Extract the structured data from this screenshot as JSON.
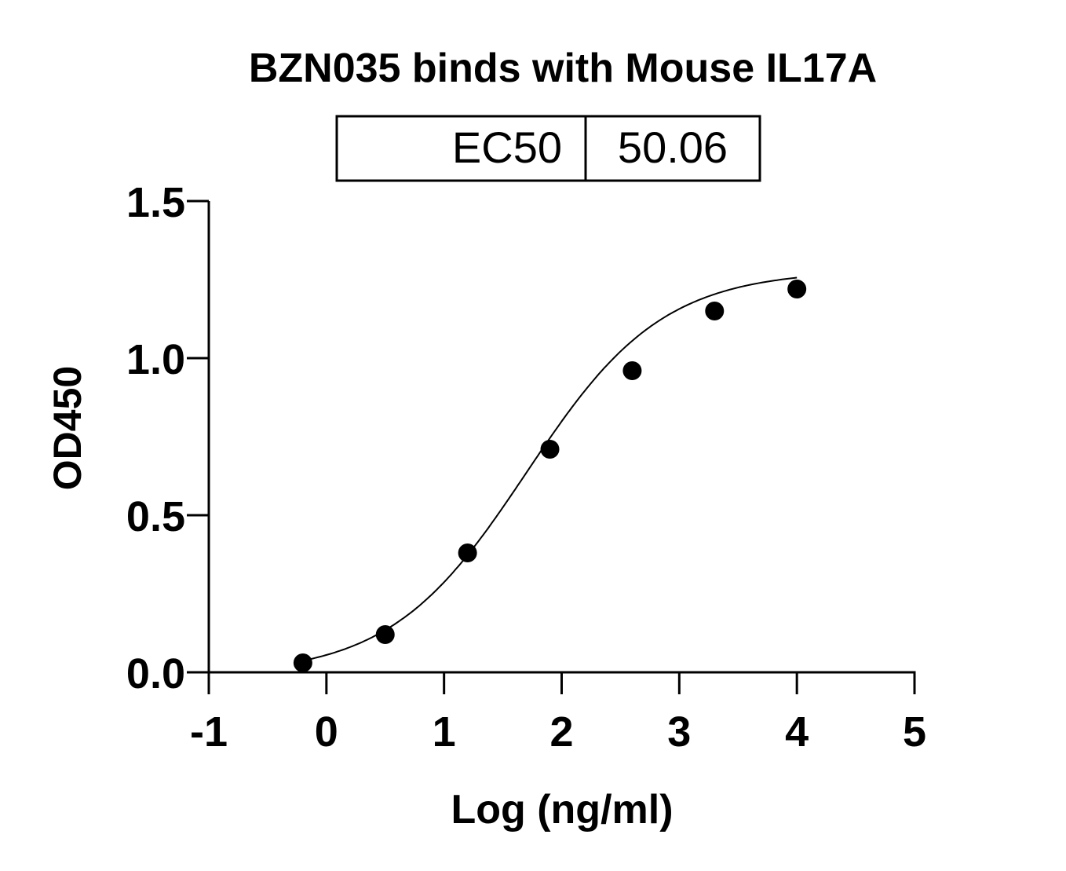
{
  "chart_data": {
    "type": "scatter",
    "title": "BZN035 binds with Mouse IL17A",
    "xlabel": "Log (ng/ml)",
    "ylabel": "OD450",
    "xlim": [
      -1,
      5
    ],
    "ylim": [
      0,
      1.5
    ],
    "xticks": [
      "-1",
      "0",
      "1",
      "2",
      "3",
      "4",
      "5"
    ],
    "yticks": [
      "0.0",
      "0.5",
      "1.0",
      "1.5"
    ],
    "grid": false,
    "fit": "sigmoidal curve",
    "annotation_table": {
      "label": "EC50",
      "value": "50.06"
    },
    "points": [
      {
        "x": -0.2,
        "y": 0.03
      },
      {
        "x": 0.5,
        "y": 0.12
      },
      {
        "x": 1.2,
        "y": 0.38
      },
      {
        "x": 1.9,
        "y": 0.71
      },
      {
        "x": 2.6,
        "y": 0.96
      },
      {
        "x": 3.3,
        "y": 1.15
      },
      {
        "x": 4.0,
        "y": 1.22
      }
    ],
    "colors": {
      "points": "#000000",
      "curve": "#000000"
    }
  }
}
